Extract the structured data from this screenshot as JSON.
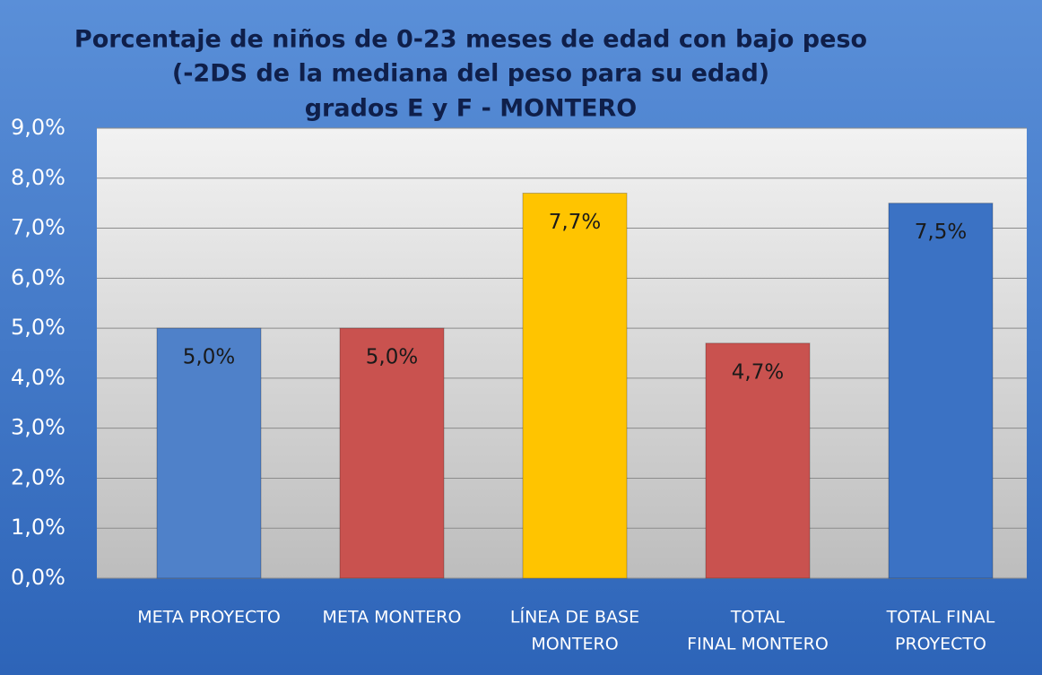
{
  "chart_data": {
    "type": "bar",
    "title": [
      "Porcentaje de niños de 0-23 meses de edad  con bajo peso",
      "(-2DS de la mediana del peso para su edad)",
      "grados E y F - MONTERO"
    ],
    "categories": [
      [
        "META PROYECTO"
      ],
      [
        "META MONTERO"
      ],
      [
        "LÍNEA DE BASE",
        "MONTERO"
      ],
      [
        "TOTAL",
        "FINAL MONTERO"
      ],
      [
        "TOTAL FINAL",
        "PROYECTO"
      ]
    ],
    "values": [
      5.0,
      5.0,
      7.7,
      4.7,
      7.5
    ],
    "value_labels": [
      "5,0%",
      "5,0%",
      "7,7%",
      "4,7%",
      "7,5%"
    ],
    "colors": [
      "#4f81c9",
      "#c9524f",
      "#ffc400",
      "#c9524f",
      "#3b72c4"
    ],
    "ylim": [
      0,
      9
    ],
    "yticks": [
      {
        "value": 0,
        "label": "0,0%"
      },
      {
        "value": 1,
        "label": "1,0%"
      },
      {
        "value": 2,
        "label": "2,0%"
      },
      {
        "value": 3,
        "label": "3,0%"
      },
      {
        "value": 4,
        "label": "4,0%"
      },
      {
        "value": 5,
        "label": "5,0%"
      },
      {
        "value": 6,
        "label": "6,0%"
      },
      {
        "value": 7,
        "label": "7,0%"
      },
      {
        "value": 8,
        "label": "8,0%"
      },
      {
        "value": 9,
        "label": "9,0%"
      }
    ],
    "grid": true
  }
}
